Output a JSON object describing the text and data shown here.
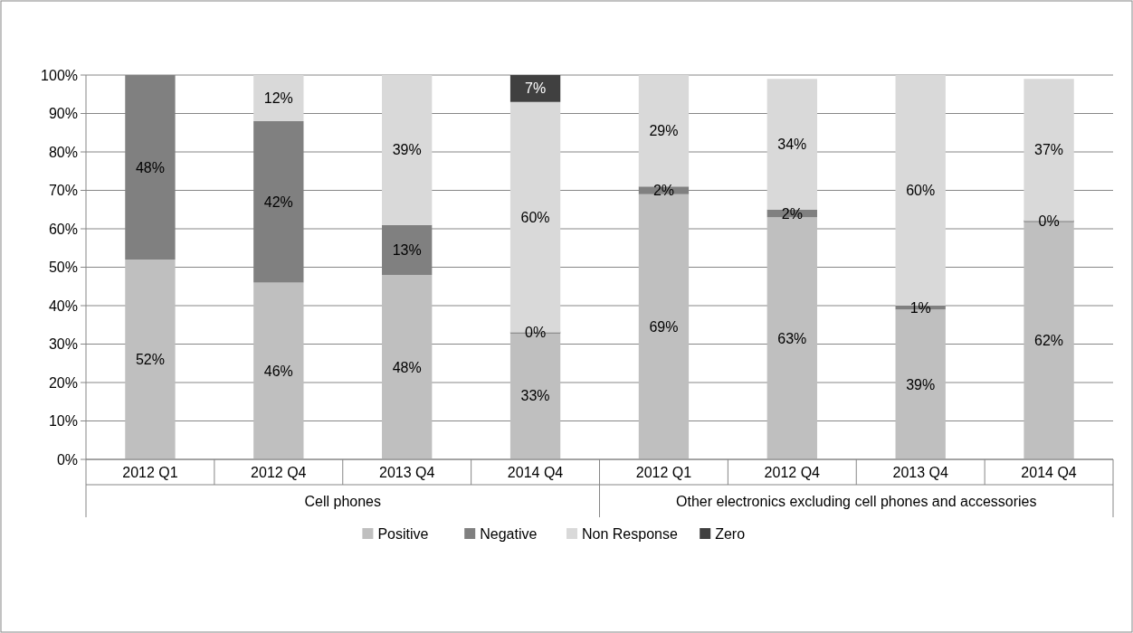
{
  "chart_data": {
    "type": "bar",
    "stacked": true,
    "categories": [
      "2012 Q1",
      "2012 Q4",
      "2013 Q4",
      "2014 Q4",
      "2012 Q1",
      "2012 Q4",
      "2013 Q4",
      "2014 Q4"
    ],
    "annotations": [
      "Cell phones",
      "Other electronics excluding cell phones and accessories"
    ],
    "series": [
      {
        "name": "Positive",
        "color": "#bfbfbf",
        "values": [
          52,
          46,
          48,
          33,
          69,
          63,
          39,
          62
        ],
        "value_labels": [
          "52%",
          "46%",
          "48%",
          "33%",
          "69%",
          "63%",
          "39%",
          "62%"
        ]
      },
      {
        "name": "Negative",
        "color": "#808080",
        "values": [
          48,
          42,
          13,
          0,
          2,
          2,
          1,
          0
        ],
        "value_labels": [
          "48%",
          "42%",
          "13%",
          "0%",
          "2%",
          "2%",
          "1%",
          "0%"
        ]
      },
      {
        "name": "Non Response",
        "color": "#d9d9d9",
        "values": [
          0,
          12,
          39,
          60,
          29,
          34,
          60,
          37
        ],
        "value_labels": [
          null,
          "12%",
          "39%",
          "60%",
          "29%",
          "34%",
          "60%",
          "37%"
        ]
      },
      {
        "name": "Zero",
        "color": "#404040",
        "values": [
          0,
          0,
          0,
          7,
          0,
          0,
          0,
          0
        ],
        "value_labels": [
          null,
          null,
          null,
          "7%",
          null,
          null,
          null,
          null
        ]
      }
    ],
    "ylim": [
      0,
      100
    ],
    "yticks": [
      {
        "value": 0,
        "label": "0%"
      },
      {
        "value": 10,
        "label": "10%"
      },
      {
        "value": 20,
        "label": "20%"
      },
      {
        "value": 30,
        "label": "30%"
      },
      {
        "value": 40,
        "label": "40%"
      },
      {
        "value": 50,
        "label": "50%"
      },
      {
        "value": 60,
        "label": "60%"
      },
      {
        "value": 70,
        "label": "70%"
      },
      {
        "value": 80,
        "label": "80%"
      },
      {
        "value": 90,
        "label": "90%"
      },
      {
        "value": 100,
        "label": "100%"
      }
    ],
    "grid": "y",
    "legend": "bottom"
  }
}
